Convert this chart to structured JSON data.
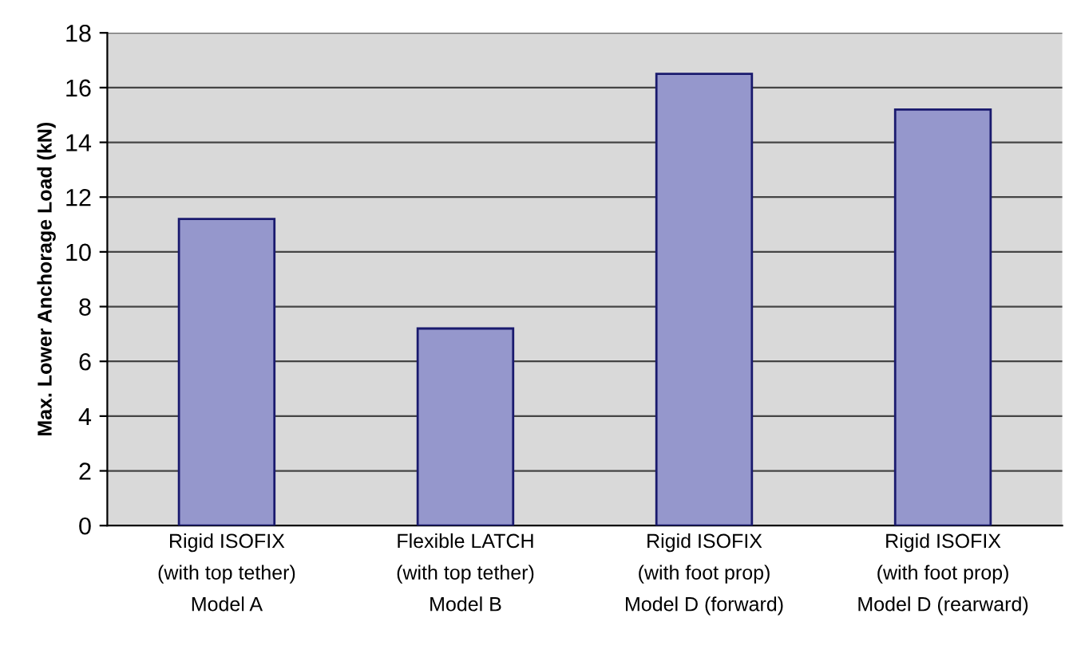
{
  "chart_data": {
    "type": "bar",
    "ylabel": "Max. Lower Anchorage Load (kN)",
    "categories": [
      "Rigid ISOFIX\n(with top tether)\nModel A",
      "Flexible LATCH\n(with top tether)\nModel B",
      "Rigid ISOFIX\n(with foot prop)\nModel D (forward)",
      "Rigid ISOFIX\n(with foot prop)\nModel D (rearward)"
    ],
    "values": [
      11.2,
      7.2,
      16.5,
      15.2
    ],
    "color": "#9597cc",
    "ylim": [
      0,
      18
    ],
    "yticks": [
      0,
      2,
      4,
      6,
      8,
      10,
      12,
      14,
      16,
      18
    ],
    "grid": "y",
    "legend": false
  }
}
